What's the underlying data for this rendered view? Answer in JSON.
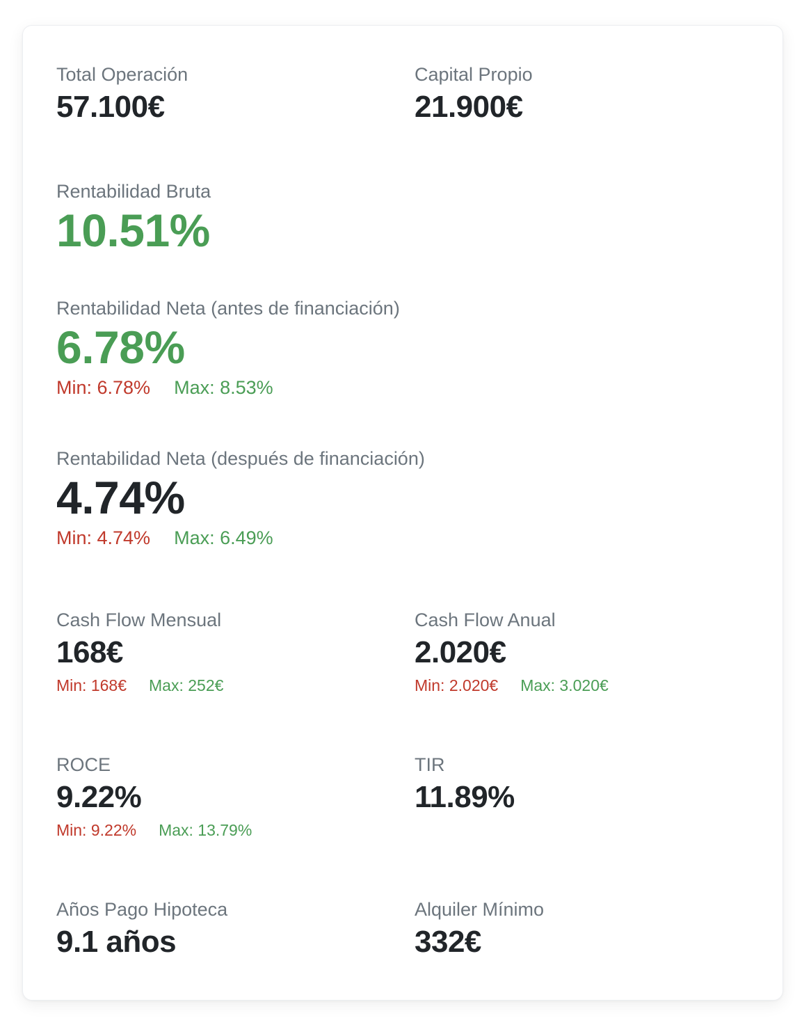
{
  "metrics": {
    "total_operacion": {
      "label": "Total Operación",
      "value": "57.100€"
    },
    "capital_propio": {
      "label": "Capital Propio",
      "value": "21.900€"
    },
    "rentabilidad_bruta": {
      "label": "Rentabilidad Bruta",
      "value": "10.51%"
    },
    "rentabilidad_neta_antes": {
      "label": "Rentabilidad Neta (antes de financiación)",
      "value": "6.78%",
      "min": "Min: 6.78%",
      "max": "Max: 8.53%"
    },
    "rentabilidad_neta_despues": {
      "label": "Rentabilidad Neta (después de financiación)",
      "value": "4.74%",
      "min": "Min: 4.74%",
      "max": "Max: 6.49%"
    },
    "cash_flow_mensual": {
      "label": "Cash Flow Mensual",
      "value": "168€",
      "min": "Min: 168€",
      "max": "Max: 252€"
    },
    "cash_flow_anual": {
      "label": "Cash Flow Anual",
      "value": "2.020€",
      "min": "Min: 2.020€",
      "max": "Max: 3.020€"
    },
    "roce": {
      "label": "ROCE",
      "value": "9.22%",
      "min": "Min: 9.22%",
      "max": "Max: 13.79%"
    },
    "tir": {
      "label": "TIR",
      "value": "11.89%"
    },
    "anos_pago_hipoteca": {
      "label": "Años Pago Hipoteca",
      "value": "9.1 años"
    },
    "alquiler_minimo": {
      "label": "Alquiler Mínimo",
      "value": "332€"
    }
  },
  "colors": {
    "positive": "#4a9d55",
    "negative": "#c0392b",
    "label": "#6c757d",
    "value": "#212529"
  }
}
